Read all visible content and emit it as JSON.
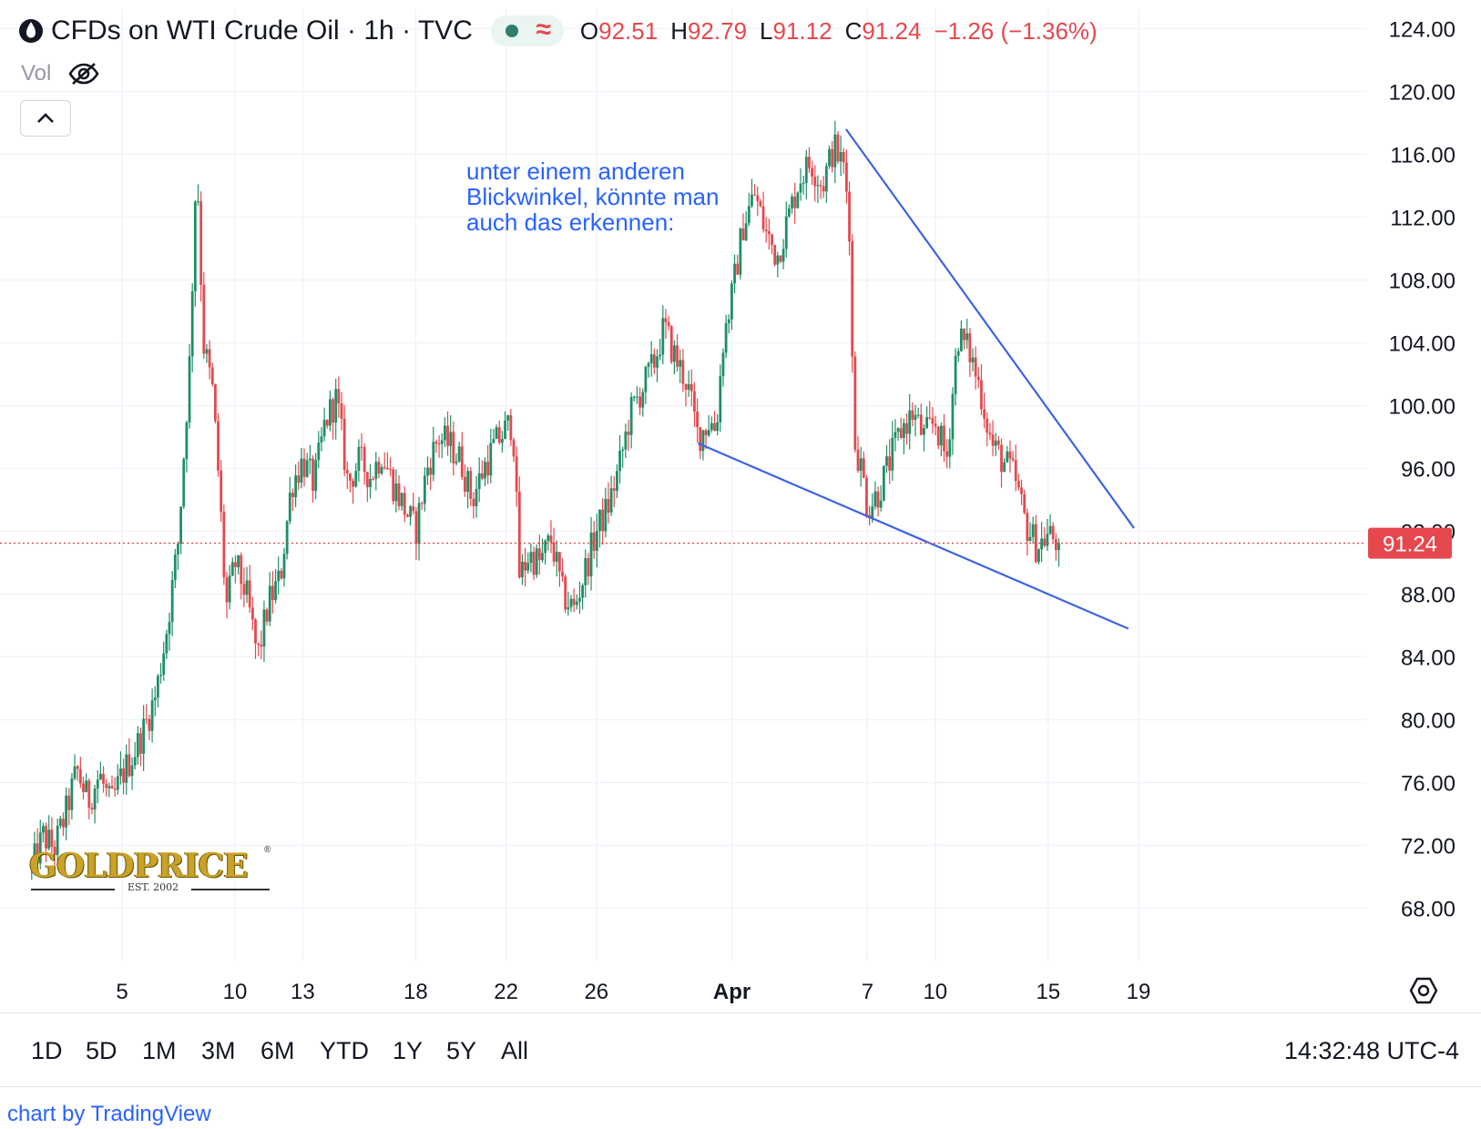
{
  "header": {
    "title": "CFDs on WTI Crude Oil · 1h · TVC",
    "ohlc": {
      "o_label": "O",
      "o": "92.51",
      "h_label": "H",
      "h": "92.79",
      "l_label": "L",
      "l": "91.12",
      "c_label": "C",
      "c": "91.24",
      "change": "−1.26 (−1.36%)"
    },
    "vol_label": "Vol",
    "icons": {
      "logo": "oil-drop-icon",
      "visibility": "eye-off-icon",
      "collapse": "chevron-up-icon",
      "status": "market-status-dot",
      "wave": "approx-icon"
    }
  },
  "annotation_text": [
    "unter einem anderen",
    "Blickwinkel, könnte man",
    "auch das erkennen:"
  ],
  "logo": {
    "text": "GOLDPRICE",
    "est": "EST. 2002",
    "reg": "®"
  },
  "colors": {
    "up": "#26a69a",
    "up_dark": "#1e8f66",
    "down": "#e5484d",
    "trend_line": "#3d63e6",
    "price_line": "#e5484d",
    "grid": "#f0f3fa"
  },
  "chart_data": {
    "type": "candlestick",
    "symbol": "CFDs on WTI Crude Oil",
    "interval": "1h",
    "ylim": [
      64,
      125
    ],
    "y_ticks": [
      "124.00",
      "120.00",
      "116.00",
      "112.00",
      "108.00",
      "104.00",
      "100.00",
      "96.00",
      "92.00",
      "88.00",
      "84.00",
      "80.00",
      "76.00",
      "72.00",
      "68.00"
    ],
    "x_ticks": [
      {
        "label": "5",
        "day": 5
      },
      {
        "label": "10",
        "day": 10
      },
      {
        "label": "13",
        "day": 13
      },
      {
        "label": "18",
        "day": 18
      },
      {
        "label": "22",
        "day": 22
      },
      {
        "label": "26",
        "day": 26
      },
      {
        "label": "Apr",
        "day": 32,
        "bold": true
      },
      {
        "label": "7",
        "day": 38
      },
      {
        "label": "10",
        "day": 41
      },
      {
        "label": "15",
        "day": 46
      },
      {
        "label": "19",
        "day": 50
      }
    ],
    "last_price": "91.24",
    "price_anchors": [
      {
        "day": 1,
        "price": 70.5
      },
      {
        "day": 1.5,
        "price": 72.6
      },
      {
        "day": 2,
        "price": 71.8
      },
      {
        "day": 2.5,
        "price": 74.0
      },
      {
        "day": 3,
        "price": 76.8
      },
      {
        "day": 3.5,
        "price": 74.8
      },
      {
        "day": 4,
        "price": 76.5
      },
      {
        "day": 4.5,
        "price": 74.5
      },
      {
        "day": 5,
        "price": 76.5
      },
      {
        "day": 5.5,
        "price": 77.8
      },
      {
        "day": 6,
        "price": 79.5
      },
      {
        "day": 6.5,
        "price": 81.6
      },
      {
        "day": 7,
        "price": 86.0
      },
      {
        "day": 7.5,
        "price": 91.5
      },
      {
        "day": 8,
        "price": 103.0
      },
      {
        "day": 8.3,
        "price": 116.0
      },
      {
        "day": 8.6,
        "price": 104.0
      },
      {
        "day": 9,
        "price": 101.0
      },
      {
        "day": 9.3,
        "price": 95.0
      },
      {
        "day": 9.6,
        "price": 87.0
      },
      {
        "day": 10,
        "price": 90.0
      },
      {
        "day": 10.5,
        "price": 88.0
      },
      {
        "day": 11,
        "price": 84.0
      },
      {
        "day": 11.5,
        "price": 87.5
      },
      {
        "day": 12,
        "price": 89.0
      },
      {
        "day": 12.5,
        "price": 95.0
      },
      {
        "day": 13,
        "price": 96.5
      },
      {
        "day": 13.5,
        "price": 95.0
      },
      {
        "day": 14,
        "price": 99.0
      },
      {
        "day": 14.5,
        "price": 100.5
      },
      {
        "day": 15,
        "price": 95.0
      },
      {
        "day": 15.5,
        "price": 96.5
      },
      {
        "day": 16,
        "price": 95.5
      },
      {
        "day": 16.5,
        "price": 97.0
      },
      {
        "day": 17,
        "price": 95.0
      },
      {
        "day": 17.5,
        "price": 93.5
      },
      {
        "day": 18,
        "price": 92.0
      },
      {
        "day": 18.5,
        "price": 96.0
      },
      {
        "day": 19,
        "price": 98.0
      },
      {
        "day": 19.5,
        "price": 97.5
      },
      {
        "day": 20,
        "price": 96.5
      },
      {
        "day": 20.5,
        "price": 94.0
      },
      {
        "day": 21,
        "price": 96.0
      },
      {
        "day": 21.5,
        "price": 97.5
      },
      {
        "day": 22,
        "price": 98.5
      },
      {
        "day": 22.3,
        "price": 99.0
      },
      {
        "day": 22.6,
        "price": 89.0
      },
      {
        "day": 23,
        "price": 90.5
      },
      {
        "day": 23.5,
        "price": 90.0
      },
      {
        "day": 24,
        "price": 91.5
      },
      {
        "day": 24.5,
        "price": 88.0
      },
      {
        "day": 25,
        "price": 87.0
      },
      {
        "day": 25.5,
        "price": 89.5
      },
      {
        "day": 26,
        "price": 92.0
      },
      {
        "day": 26.5,
        "price": 93.5
      },
      {
        "day": 27,
        "price": 96.0
      },
      {
        "day": 27.5,
        "price": 99.5
      },
      {
        "day": 28,
        "price": 101.0
      },
      {
        "day": 28.5,
        "price": 102.5
      },
      {
        "day": 29,
        "price": 105.0
      },
      {
        "day": 29.5,
        "price": 103.0
      },
      {
        "day": 30,
        "price": 101.5
      },
      {
        "day": 30.5,
        "price": 98.0
      },
      {
        "day": 31,
        "price": 99.0
      },
      {
        "day": 31.3,
        "price": 98.5
      },
      {
        "day": 31.6,
        "price": 104.0
      },
      {
        "day": 32,
        "price": 107.0
      },
      {
        "day": 32.5,
        "price": 111.5
      },
      {
        "day": 33,
        "price": 113.5
      },
      {
        "day": 33.5,
        "price": 111.0
      },
      {
        "day": 34,
        "price": 109.5
      },
      {
        "day": 34.5,
        "price": 112.0
      },
      {
        "day": 35,
        "price": 114.5
      },
      {
        "day": 35.5,
        "price": 115.5
      },
      {
        "day": 36,
        "price": 114.0
      },
      {
        "day": 36.5,
        "price": 116.5
      },
      {
        "day": 37,
        "price": 115.0
      },
      {
        "day": 37.2,
        "price": 111.5
      },
      {
        "day": 37.4,
        "price": 98.0
      },
      {
        "day": 37.8,
        "price": 95.5
      },
      {
        "day": 38,
        "price": 93.5
      },
      {
        "day": 38.5,
        "price": 94.5
      },
      {
        "day": 39,
        "price": 96.5
      },
      {
        "day": 39.5,
        "price": 98.5
      },
      {
        "day": 40,
        "price": 99.5
      },
      {
        "day": 40.5,
        "price": 98.0
      },
      {
        "day": 41,
        "price": 99.0
      },
      {
        "day": 41.5,
        "price": 96.5
      },
      {
        "day": 42,
        "price": 104.5
      },
      {
        "day": 42.5,
        "price": 103.5
      },
      {
        "day": 43,
        "price": 101.0
      },
      {
        "day": 43.5,
        "price": 97.5
      },
      {
        "day": 44,
        "price": 96.5
      },
      {
        "day": 44.5,
        "price": 95.5
      },
      {
        "day": 45,
        "price": 92.5
      },
      {
        "day": 45.5,
        "price": 91.0
      },
      {
        "day": 46,
        "price": 91.8
      },
      {
        "day": 46.5,
        "price": 91.24
      }
    ],
    "trend_lines": [
      {
        "from": {
          "day": 37.05,
          "price": 117.6
        },
        "to": {
          "day": 49.8,
          "price": 92.2
        }
      },
      {
        "from": {
          "day": 30.5,
          "price": 97.6
        },
        "to": {
          "day": 49.55,
          "price": 85.8
        }
      }
    ]
  },
  "ranges": [
    "1D",
    "5D",
    "1M",
    "3M",
    "6M",
    "YTD",
    "1Y",
    "5Y",
    "All"
  ],
  "clock": "14:32:48 UTC-4",
  "footer": "chart by TradingView"
}
